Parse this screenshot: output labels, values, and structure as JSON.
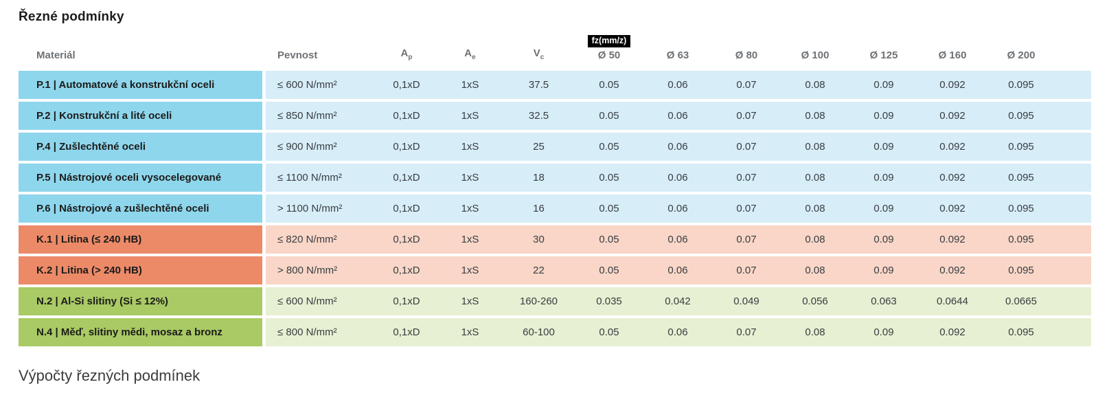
{
  "page": {
    "title": "Řezné podmínky",
    "footer_heading": "Výpočty řezných podmínek"
  },
  "colors": {
    "p_dark": "#8ed6ec",
    "p_light": "#d7edf8",
    "k_dark": "#ec8a68",
    "k_light": "#f9d6c7",
    "n_dark": "#a9ca64",
    "n_light": "#e7f0d2",
    "badge_bg": "#000000",
    "badge_text": "#ffffff"
  },
  "table": {
    "columns": {
      "material": "Materiál",
      "pevnost": "Pevnost",
      "ap_base": "A",
      "ap_sub": "p",
      "ae_base": "A",
      "ae_sub": "e",
      "vc_base": "V",
      "vc_sub": "c",
      "fz_badge": "fz(mm/z)",
      "diameters": [
        "Ø 50",
        "Ø 63",
        "Ø 80",
        "Ø 100",
        "Ø 125",
        "Ø 160",
        "Ø 200"
      ]
    },
    "rows": [
      {
        "group": "P",
        "material": "P.1 | Automatové a konstrukční oceli",
        "pevnost": "≤ 600 N/mm²",
        "ap": "0,1xD",
        "ae": "1xS",
        "vc": "37.5",
        "fz": [
          "0.05",
          "0.06",
          "0.07",
          "0.08",
          "0.09",
          "0.092",
          "0.095"
        ]
      },
      {
        "group": "P",
        "material": "P.2 | Konstrukční a lité oceli",
        "pevnost": "≤ 850 N/mm²",
        "ap": "0,1xD",
        "ae": "1xS",
        "vc": "32.5",
        "fz": [
          "0.05",
          "0.06",
          "0.07",
          "0.08",
          "0.09",
          "0.092",
          "0.095"
        ]
      },
      {
        "group": "P",
        "material": "P.4 | Zušlechtěné oceli",
        "pevnost": "≤ 900 N/mm²",
        "ap": "0,1xD",
        "ae": "1xS",
        "vc": "25",
        "fz": [
          "0.05",
          "0.06",
          "0.07",
          "0.08",
          "0.09",
          "0.092",
          "0.095"
        ]
      },
      {
        "group": "P",
        "material": "P.5 | Nástrojové oceli vysocelegované",
        "pevnost": "≤ 1100 N/mm²",
        "ap": "0,1xD",
        "ae": "1xS",
        "vc": "18",
        "fz": [
          "0.05",
          "0.06",
          "0.07",
          "0.08",
          "0.09",
          "0.092",
          "0.095"
        ]
      },
      {
        "group": "P",
        "material": "P.6 | Nástrojové a zušlechtěné oceli",
        "pevnost": "> 1100 N/mm²",
        "ap": "0,1xD",
        "ae": "1xS",
        "vc": "16",
        "fz": [
          "0.05",
          "0.06",
          "0.07",
          "0.08",
          "0.09",
          "0.092",
          "0.095"
        ]
      },
      {
        "group": "K",
        "material": "K.1 | Litina (≤ 240 HB)",
        "pevnost": "≤ 820 N/mm²",
        "ap": "0,1xD",
        "ae": "1xS",
        "vc": "30",
        "fz": [
          "0.05",
          "0.06",
          "0.07",
          "0.08",
          "0.09",
          "0.092",
          "0.095"
        ]
      },
      {
        "group": "K",
        "material": "K.2 | Litina (> 240 HB)",
        "pevnost": "> 800 N/mm²",
        "ap": "0,1xD",
        "ae": "1xS",
        "vc": "22",
        "fz": [
          "0.05",
          "0.06",
          "0.07",
          "0.08",
          "0.09",
          "0.092",
          "0.095"
        ]
      },
      {
        "group": "N",
        "material": "N.2 | Al-Si slitiny (Si ≤ 12%)",
        "pevnost": "≤ 600 N/mm²",
        "ap": "0,1xD",
        "ae": "1xS",
        "vc": "160-260",
        "fz": [
          "0.035",
          "0.042",
          "0.049",
          "0.056",
          "0.063",
          "0.0644",
          "0.0665"
        ]
      },
      {
        "group": "N",
        "material": "N.4 | Měď, slitiny mědi, mosaz a bronz",
        "pevnost": "≤ 800 N/mm²",
        "ap": "0,1xD",
        "ae": "1xS",
        "vc": "60-100",
        "fz": [
          "0.05",
          "0.06",
          "0.07",
          "0.08",
          "0.09",
          "0.092",
          "0.095"
        ]
      }
    ]
  }
}
